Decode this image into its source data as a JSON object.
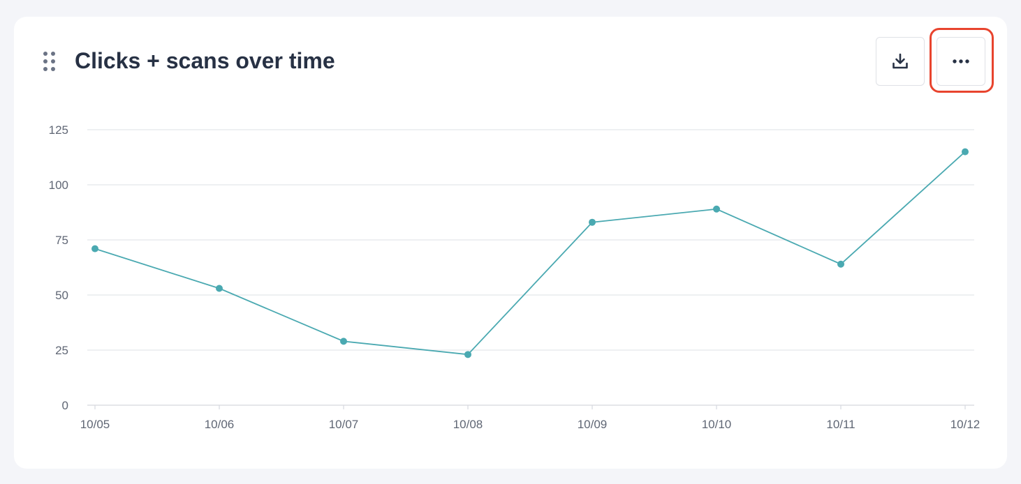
{
  "widget": {
    "title": "Clicks + scans over time",
    "download_icon": "download-icon",
    "more_icon": "ellipsis-icon",
    "drag_icon": "drag-handle-icon",
    "highlight_color": "#e8442e"
  },
  "chart_data": {
    "type": "line",
    "title": "Clicks + scans over time",
    "xlabel": "",
    "ylabel": "",
    "categories": [
      "10/05",
      "10/06",
      "10/07",
      "10/08",
      "10/09",
      "10/10",
      "10/11",
      "10/12"
    ],
    "series": [
      {
        "values": [
          71,
          53,
          29,
          23,
          83,
          89,
          64,
          115
        ],
        "color": "#4aa9b1"
      }
    ],
    "ylim": [
      0,
      125
    ],
    "yticks": [
      "0",
      "25",
      "50",
      "75",
      "100",
      "125"
    ],
    "grid": true,
    "legend": "none"
  }
}
